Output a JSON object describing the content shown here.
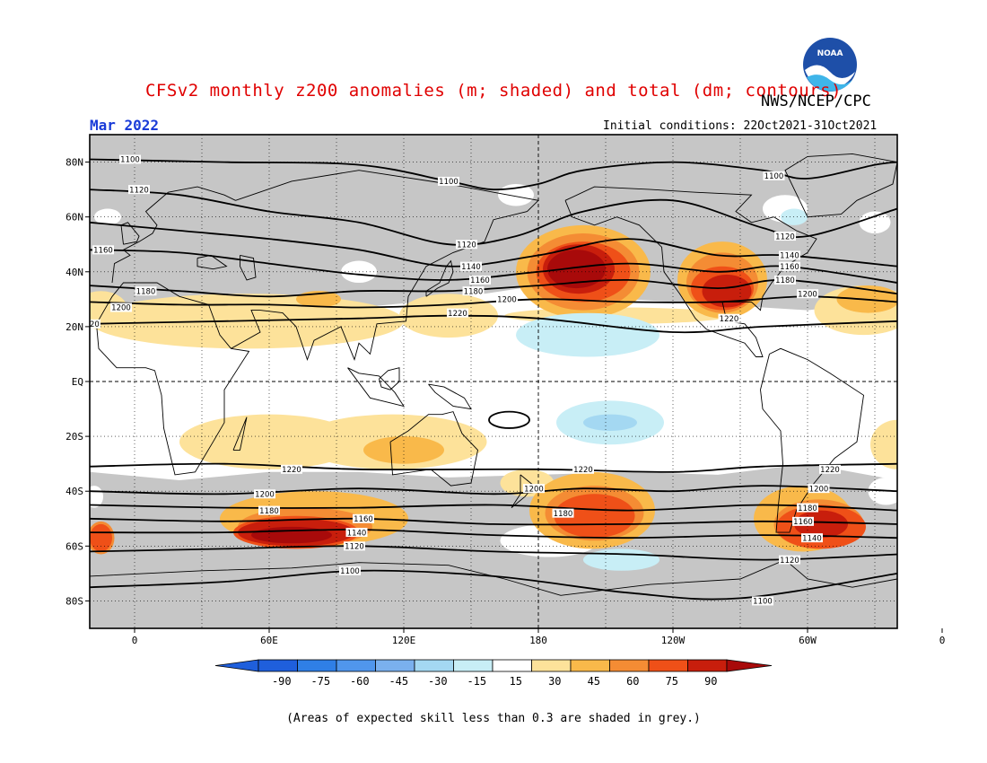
{
  "header": {
    "title": "CFSv2 monthly z200 anomalies (m; shaded) and total (dm; contours)",
    "org": "NWS/NCEP/CPC",
    "valid_month": "Mar 2022",
    "initial_conditions": "Initial conditions: 22Oct2021-31Oct2021",
    "logo_text": "NOAA"
  },
  "footnote": "(Areas of expected skill less than 0.3 are shaded in grey.)",
  "map": {
    "projection": "cylindrical-equidistant",
    "lon_range": [
      -20,
      340
    ],
    "lat_range": [
      -90,
      90
    ],
    "lat_ticks": [
      {
        "lat": 80,
        "label": "80N"
      },
      {
        "lat": 60,
        "label": "60N"
      },
      {
        "lat": 40,
        "label": "40N"
      },
      {
        "lat": 20,
        "label": "20N"
      },
      {
        "lat": 0,
        "label": "EQ"
      },
      {
        "lat": -20,
        "label": "20S"
      },
      {
        "lat": -40,
        "label": "40S"
      },
      {
        "lat": -60,
        "label": "60S"
      },
      {
        "lat": -80,
        "label": "80S"
      }
    ],
    "lon_ticks": [
      {
        "lon": 0,
        "label": "0"
      },
      {
        "lon": 60,
        "label": "60E"
      },
      {
        "lon": 120,
        "label": "120E"
      },
      {
        "lon": 180,
        "label": "180"
      },
      {
        "lon": 240,
        "label": "120W"
      },
      {
        "lon": 300,
        "label": "60W"
      },
      {
        "lon": 360,
        "label": "0"
      }
    ],
    "skill_mask_color": "#c6c6c6",
    "contours": [
      {
        "value": "1100",
        "points": [
          [
            -20,
            81
          ],
          [
            40,
            80
          ],
          [
            100,
            79
          ],
          [
            140,
            73
          ],
          [
            160,
            70
          ],
          [
            180,
            72
          ],
          [
            200,
            77
          ],
          [
            240,
            80
          ],
          [
            280,
            77
          ],
          [
            300,
            74
          ],
          [
            330,
            79
          ],
          [
            340,
            80
          ]
        ],
        "labels": [
          {
            "lon": -2,
            "lat": 81
          },
          {
            "lon": 140,
            "lat": 73
          },
          {
            "lon": 285,
            "lat": 75
          }
        ]
      },
      {
        "value": "1120",
        "points": [
          [
            -20,
            70
          ],
          [
            20,
            68
          ],
          [
            60,
            62
          ],
          [
            100,
            58
          ],
          [
            140,
            50
          ],
          [
            170,
            53
          ],
          [
            200,
            62
          ],
          [
            240,
            66
          ],
          [
            280,
            56
          ],
          [
            300,
            53
          ],
          [
            340,
            63
          ]
        ],
        "labels": [
          {
            "lon": 2,
            "lat": 70
          },
          {
            "lon": 148,
            "lat": 50
          },
          {
            "lon": 290,
            "lat": 53
          }
        ]
      },
      {
        "value": "1140",
        "points": [
          [
            -20,
            58
          ],
          [
            20,
            55
          ],
          [
            60,
            52
          ],
          [
            100,
            48
          ],
          [
            140,
            42
          ],
          [
            180,
            46
          ],
          [
            220,
            52
          ],
          [
            260,
            46
          ],
          [
            290,
            46
          ],
          [
            340,
            42
          ]
        ],
        "labels": [
          {
            "lon": 150,
            "lat": 42
          },
          {
            "lon": 292,
            "lat": 46
          }
        ]
      },
      {
        "value": "1160",
        "points": [
          [
            -20,
            48
          ],
          [
            20,
            47
          ],
          [
            60,
            43
          ],
          [
            100,
            39
          ],
          [
            140,
            37
          ],
          [
            180,
            40
          ],
          [
            220,
            43
          ],
          [
            260,
            40
          ],
          [
            290,
            42
          ],
          [
            340,
            36
          ]
        ],
        "labels": [
          {
            "lon": -14,
            "lat": 48
          },
          {
            "lon": 154,
            "lat": 37
          },
          {
            "lon": 292,
            "lat": 42
          }
        ]
      },
      {
        "value": "1180",
        "points": [
          [
            -20,
            35
          ],
          [
            20,
            33
          ],
          [
            60,
            31
          ],
          [
            100,
            33
          ],
          [
            140,
            33
          ],
          [
            180,
            35
          ],
          [
            220,
            37
          ],
          [
            260,
            34
          ],
          [
            290,
            37
          ],
          [
            340,
            32
          ]
        ],
        "labels": [
          {
            "lon": 5,
            "lat": 33
          },
          {
            "lon": 151,
            "lat": 33
          },
          {
            "lon": 290,
            "lat": 37
          }
        ]
      },
      {
        "value": "1200",
        "points": [
          [
            -20,
            29
          ],
          [
            20,
            28
          ],
          [
            60,
            28
          ],
          [
            100,
            27
          ],
          [
            140,
            28
          ],
          [
            180,
            30
          ],
          [
            220,
            29
          ],
          [
            260,
            29
          ],
          [
            300,
            31
          ],
          [
            340,
            29
          ]
        ],
        "labels": [
          {
            "lon": -6,
            "lat": 27
          },
          {
            "lon": 166,
            "lat": 30
          },
          {
            "lon": 300,
            "lat": 32
          }
        ]
      },
      {
        "value": "1220",
        "points": [
          [
            -20,
            21
          ],
          [
            40,
            22
          ],
          [
            100,
            23
          ],
          [
            140,
            24
          ],
          [
            180,
            23
          ],
          [
            240,
            18
          ],
          [
            280,
            20
          ],
          [
            340,
            22
          ]
        ],
        "labels": [
          {
            "lon": -20,
            "lat": 21
          },
          {
            "lon": 144,
            "lat": 25
          },
          {
            "lon": 265,
            "lat": 23
          }
        ]
      },
      {
        "value": "1220",
        "points": [
          [
            -20,
            -31
          ],
          [
            40,
            -30
          ],
          [
            100,
            -32
          ],
          [
            180,
            -32
          ],
          [
            240,
            -33
          ],
          [
            280,
            -31
          ],
          [
            340,
            -30
          ]
        ],
        "labels": [
          {
            "lon": 70,
            "lat": -32
          },
          {
            "lon": 200,
            "lat": -32
          },
          {
            "lon": 310,
            "lat": -32
          }
        ]
      },
      {
        "value": "1200",
        "points": [
          [
            -20,
            -40
          ],
          [
            40,
            -41
          ],
          [
            100,
            -39
          ],
          [
            160,
            -41
          ],
          [
            200,
            -39
          ],
          [
            240,
            -40
          ],
          [
            280,
            -38
          ],
          [
            340,
            -40
          ]
        ],
        "labels": [
          {
            "lon": 58,
            "lat": -41
          },
          {
            "lon": 178,
            "lat": -39
          },
          {
            "lon": 305,
            "lat": -39
          }
        ]
      },
      {
        "value": "1180",
        "points": [
          [
            -20,
            -45
          ],
          [
            40,
            -46
          ],
          [
            100,
            -46
          ],
          [
            160,
            -45
          ],
          [
            220,
            -47
          ],
          [
            280,
            -45
          ],
          [
            340,
            -47
          ]
        ],
        "labels": [
          {
            "lon": 60,
            "lat": -47
          },
          {
            "lon": 191,
            "lat": -48
          },
          {
            "lon": 300,
            "lat": -46
          }
        ]
      },
      {
        "value": "1160",
        "points": [
          [
            -20,
            -50
          ],
          [
            40,
            -51
          ],
          [
            100,
            -50
          ],
          [
            160,
            -52
          ],
          [
            220,
            -52
          ],
          [
            280,
            -51
          ],
          [
            340,
            -52
          ]
        ],
        "labels": [
          {
            "lon": 102,
            "lat": -50
          },
          {
            "lon": 298,
            "lat": -51
          }
        ]
      },
      {
        "value": "1140",
        "points": [
          [
            -20,
            -55
          ],
          [
            40,
            -55
          ],
          [
            100,
            -54
          ],
          [
            160,
            -56
          ],
          [
            220,
            -57
          ],
          [
            280,
            -56
          ],
          [
            340,
            -57
          ]
        ],
        "labels": [
          {
            "lon": 99,
            "lat": -55
          },
          {
            "lon": 302,
            "lat": -57
          }
        ]
      },
      {
        "value": "1120",
        "points": [
          [
            -20,
            -62
          ],
          [
            40,
            -61
          ],
          [
            100,
            -60
          ],
          [
            160,
            -62
          ],
          [
            220,
            -63
          ],
          [
            280,
            -65
          ],
          [
            340,
            -63
          ]
        ],
        "labels": [
          {
            "lon": 98,
            "lat": -60
          },
          {
            "lon": 292,
            "lat": -65
          }
        ]
      },
      {
        "value": "1100",
        "points": [
          [
            -20,
            -75
          ],
          [
            40,
            -73
          ],
          [
            100,
            -69
          ],
          [
            160,
            -71
          ],
          [
            220,
            -77
          ],
          [
            270,
            -79
          ],
          [
            340,
            -70
          ]
        ],
        "labels": [
          {
            "lon": 96,
            "lat": -69
          },
          {
            "lon": 280,
            "lat": -80
          }
        ]
      }
    ],
    "small_closed_contour": {
      "center": [
        167,
        -14
      ],
      "radius": [
        9,
        3
      ]
    },
    "anomaly_blobs": [
      {
        "level": 15,
        "cx": -15,
        "cy": 26,
        "rx": 12,
        "ry": 7
      },
      {
        "level": 15,
        "cx": 50,
        "cy": 22,
        "rx": 70,
        "ry": 10
      },
      {
        "level": 15,
        "cx": 140,
        "cy": 24,
        "rx": 22,
        "ry": 8
      },
      {
        "level": 15,
        "cx": 215,
        "cy": 24,
        "rx": 50,
        "ry": 3
      },
      {
        "level": 15,
        "cx": 325,
        "cy": 26,
        "rx": 22,
        "ry": 9
      },
      {
        "level": 15,
        "cx": 60,
        "cy": -22,
        "rx": 40,
        "ry": 10
      },
      {
        "level": 15,
        "cx": 115,
        "cy": -22,
        "rx": 42,
        "ry": 10
      },
      {
        "level": 15,
        "cx": 340,
        "cy": -23,
        "rx": 12,
        "ry": 9
      },
      {
        "level": 15,
        "cx": 175,
        "cy": -37,
        "rx": 12,
        "ry": 5
      },
      {
        "level": 30,
        "cx": 82,
        "cy": 30,
        "rx": 10,
        "ry": 3
      },
      {
        "level": 30,
        "cx": 120,
        "cy": -25,
        "rx": 18,
        "ry": 5
      },
      {
        "level": 30,
        "cx": 200,
        "cy": 40,
        "rx": 30,
        "ry": 17
      },
      {
        "level": 30,
        "cx": 262,
        "cy": 37,
        "rx": 20,
        "ry": 14
      },
      {
        "level": 30,
        "cx": 298,
        "cy": -50,
        "rx": 22,
        "ry": 12
      },
      {
        "level": 30,
        "cx": 80,
        "cy": -50,
        "rx": 42,
        "ry": 10
      },
      {
        "level": 30,
        "cx": 204,
        "cy": -47,
        "rx": 28,
        "ry": 14
      },
      {
        "level": 30,
        "cx": 327,
        "cy": 30,
        "rx": 14,
        "ry": 5
      },
      {
        "level": 45,
        "cx": 76,
        "cy": -53,
        "rx": 30,
        "ry": 7
      },
      {
        "level": 45,
        "cx": 205,
        "cy": -48,
        "rx": 22,
        "ry": 10
      },
      {
        "level": 45,
        "cx": 305,
        "cy": -52,
        "rx": 20,
        "ry": 9
      },
      {
        "level": 45,
        "cx": 200,
        "cy": 40,
        "rx": 25,
        "ry": 14
      },
      {
        "level": 45,
        "cx": 262,
        "cy": 36,
        "rx": 16,
        "ry": 11
      },
      {
        "level": 45,
        "cx": -15,
        "cy": -57,
        "rx": 6,
        "ry": 6
      },
      {
        "level": 60,
        "cx": 200,
        "cy": 40,
        "rx": 21,
        "ry": 11
      },
      {
        "level": 60,
        "cx": 262,
        "cy": 34,
        "rx": 14,
        "ry": 8
      },
      {
        "level": 60,
        "cx": 72,
        "cy": -55,
        "rx": 28,
        "ry": 6
      },
      {
        "level": 60,
        "cx": 205,
        "cy": -49,
        "rx": 18,
        "ry": 8
      },
      {
        "level": 60,
        "cx": 306,
        "cy": -53,
        "rx": 20,
        "ry": 8
      },
      {
        "level": 60,
        "cx": -15,
        "cy": -57,
        "rx": 5,
        "ry": 5
      },
      {
        "level": 75,
        "cx": 198,
        "cy": 41,
        "rx": 16,
        "ry": 9
      },
      {
        "level": 75,
        "cx": 264,
        "cy": 33,
        "rx": 11,
        "ry": 6
      },
      {
        "level": 75,
        "cx": 72,
        "cy": -55,
        "rx": 26,
        "ry": 5
      },
      {
        "level": 75,
        "cx": 306,
        "cy": -52,
        "rx": 12,
        "ry": 5
      },
      {
        "level": 90,
        "cx": 197,
        "cy": 41,
        "rx": 13,
        "ry": 7
      },
      {
        "level": 90,
        "cx": 70,
        "cy": -56,
        "rx": 18,
        "ry": 3
      },
      {
        "level": -15,
        "cx": 202,
        "cy": 17,
        "rx": 32,
        "ry": 8
      },
      {
        "level": -15,
        "cx": 212,
        "cy": -15,
        "rx": 24,
        "ry": 8
      },
      {
        "level": -15,
        "cx": 217,
        "cy": -65,
        "rx": 17,
        "ry": 4
      },
      {
        "level": -15,
        "cx": 294,
        "cy": 60,
        "rx": 6,
        "ry": 3
      },
      {
        "level": -30,
        "cx": 212,
        "cy": -15,
        "rx": 12,
        "ry": 3
      }
    ]
  },
  "colorbar": {
    "levels": [
      {
        "label": "-90",
        "color": "#1f5fdc"
      },
      {
        "label": "-75",
        "color": "#2f7fe6"
      },
      {
        "label": "-60",
        "color": "#5096ec"
      },
      {
        "label": "-45",
        "color": "#7ab0ee"
      },
      {
        "label": "-30",
        "color": "#a4d8f2"
      },
      {
        "label": "-15",
        "color": "#c8eef6"
      },
      {
        "label": "15",
        "color": "#ffffff"
      },
      {
        "label": "30",
        "color": "#fde29a"
      },
      {
        "label": "45",
        "color": "#f9b94a"
      },
      {
        "label": "60",
        "color": "#f48c34"
      },
      {
        "label": "75",
        "color": "#ef5018"
      },
      {
        "label": "90",
        "color": "#c81e0c"
      }
    ],
    "below_color": "#1f5fdc",
    "above_color": "#a80a0a"
  }
}
